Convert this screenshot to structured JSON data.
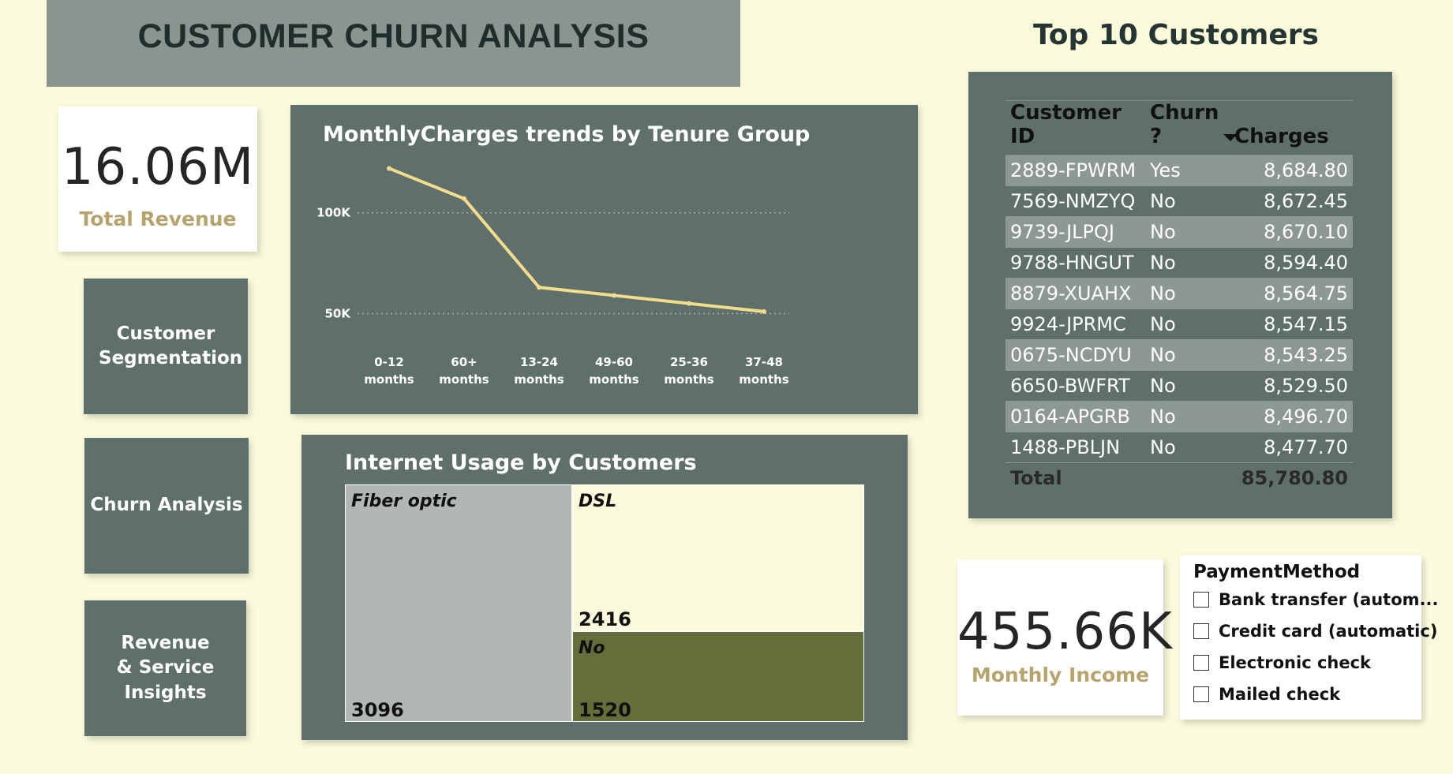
{
  "header": {
    "title": "CUSTOMER CHURN ANALYSIS"
  },
  "kpis": {
    "total_revenue": {
      "value": "16.06M",
      "label": "Total Revenue"
    },
    "monthly_income": {
      "value": "455.66K",
      "label": "Monthly Income"
    }
  },
  "nav": {
    "segmentation": "Customer Segmentation",
    "churn": "Churn Analysis",
    "revenue": "Revenue & Service Insights"
  },
  "colors": {
    "panel": "#5f706c",
    "line": "#f3dc8b",
    "label_gold": "#b6a46c",
    "background": "#fbfbdc"
  },
  "chart_data": [
    {
      "type": "line",
      "title": "MonthlyCharges trends by Tenure Group",
      "categories": [
        "0-12 months",
        "60+ months",
        "13-24 months",
        "49-60 months",
        "25-36 months",
        "37-48 months"
      ],
      "values": [
        122000,
        107000,
        63000,
        59000,
        55000,
        51000
      ],
      "yticks": [
        {
          "value": 50000,
          "label": "50K"
        },
        {
          "value": 100000,
          "label": "100K"
        }
      ],
      "ylim": [
        40000,
        130000
      ],
      "grid": true
    },
    {
      "type": "treemap",
      "title": "Internet Usage by Customers",
      "nodes": [
        {
          "label": "Fiber optic",
          "value": 3096,
          "color": "#b1b8b4"
        },
        {
          "label": "DSL",
          "value": 2416,
          "color": "#fbfbdc"
        },
        {
          "label": "No",
          "value": 1520,
          "color": "#646e3a"
        }
      ]
    }
  ],
  "top_customers": {
    "title": "Top 10 Customers",
    "columns": [
      "Customer ID",
      "Churn ?",
      "Charges"
    ],
    "rows": [
      [
        "2889-FPWRM",
        "Yes",
        "8,684.80"
      ],
      [
        "7569-NMZYQ",
        "No",
        "8,672.45"
      ],
      [
        "9739-JLPQJ",
        "No",
        "8,670.10"
      ],
      [
        "9788-HNGUT",
        "No",
        "8,594.40"
      ],
      [
        "8879-XUAHX",
        "No",
        "8,564.75"
      ],
      [
        "9924-JPRMC",
        "No",
        "8,547.15"
      ],
      [
        "0675-NCDYU",
        "No",
        "8,543.25"
      ],
      [
        "6650-BWFRT",
        "No",
        "8,529.50"
      ],
      [
        "0164-APGRB",
        "No",
        "8,496.70"
      ],
      [
        "1488-PBLJN",
        "No",
        "8,477.70"
      ]
    ],
    "total_label": "Total",
    "total_value": "85,780.80"
  },
  "slicer": {
    "title": "PaymentMethod",
    "options": [
      "Bank transfer (autom...",
      "Credit card (automatic)",
      "Electronic check",
      "Mailed check"
    ]
  }
}
